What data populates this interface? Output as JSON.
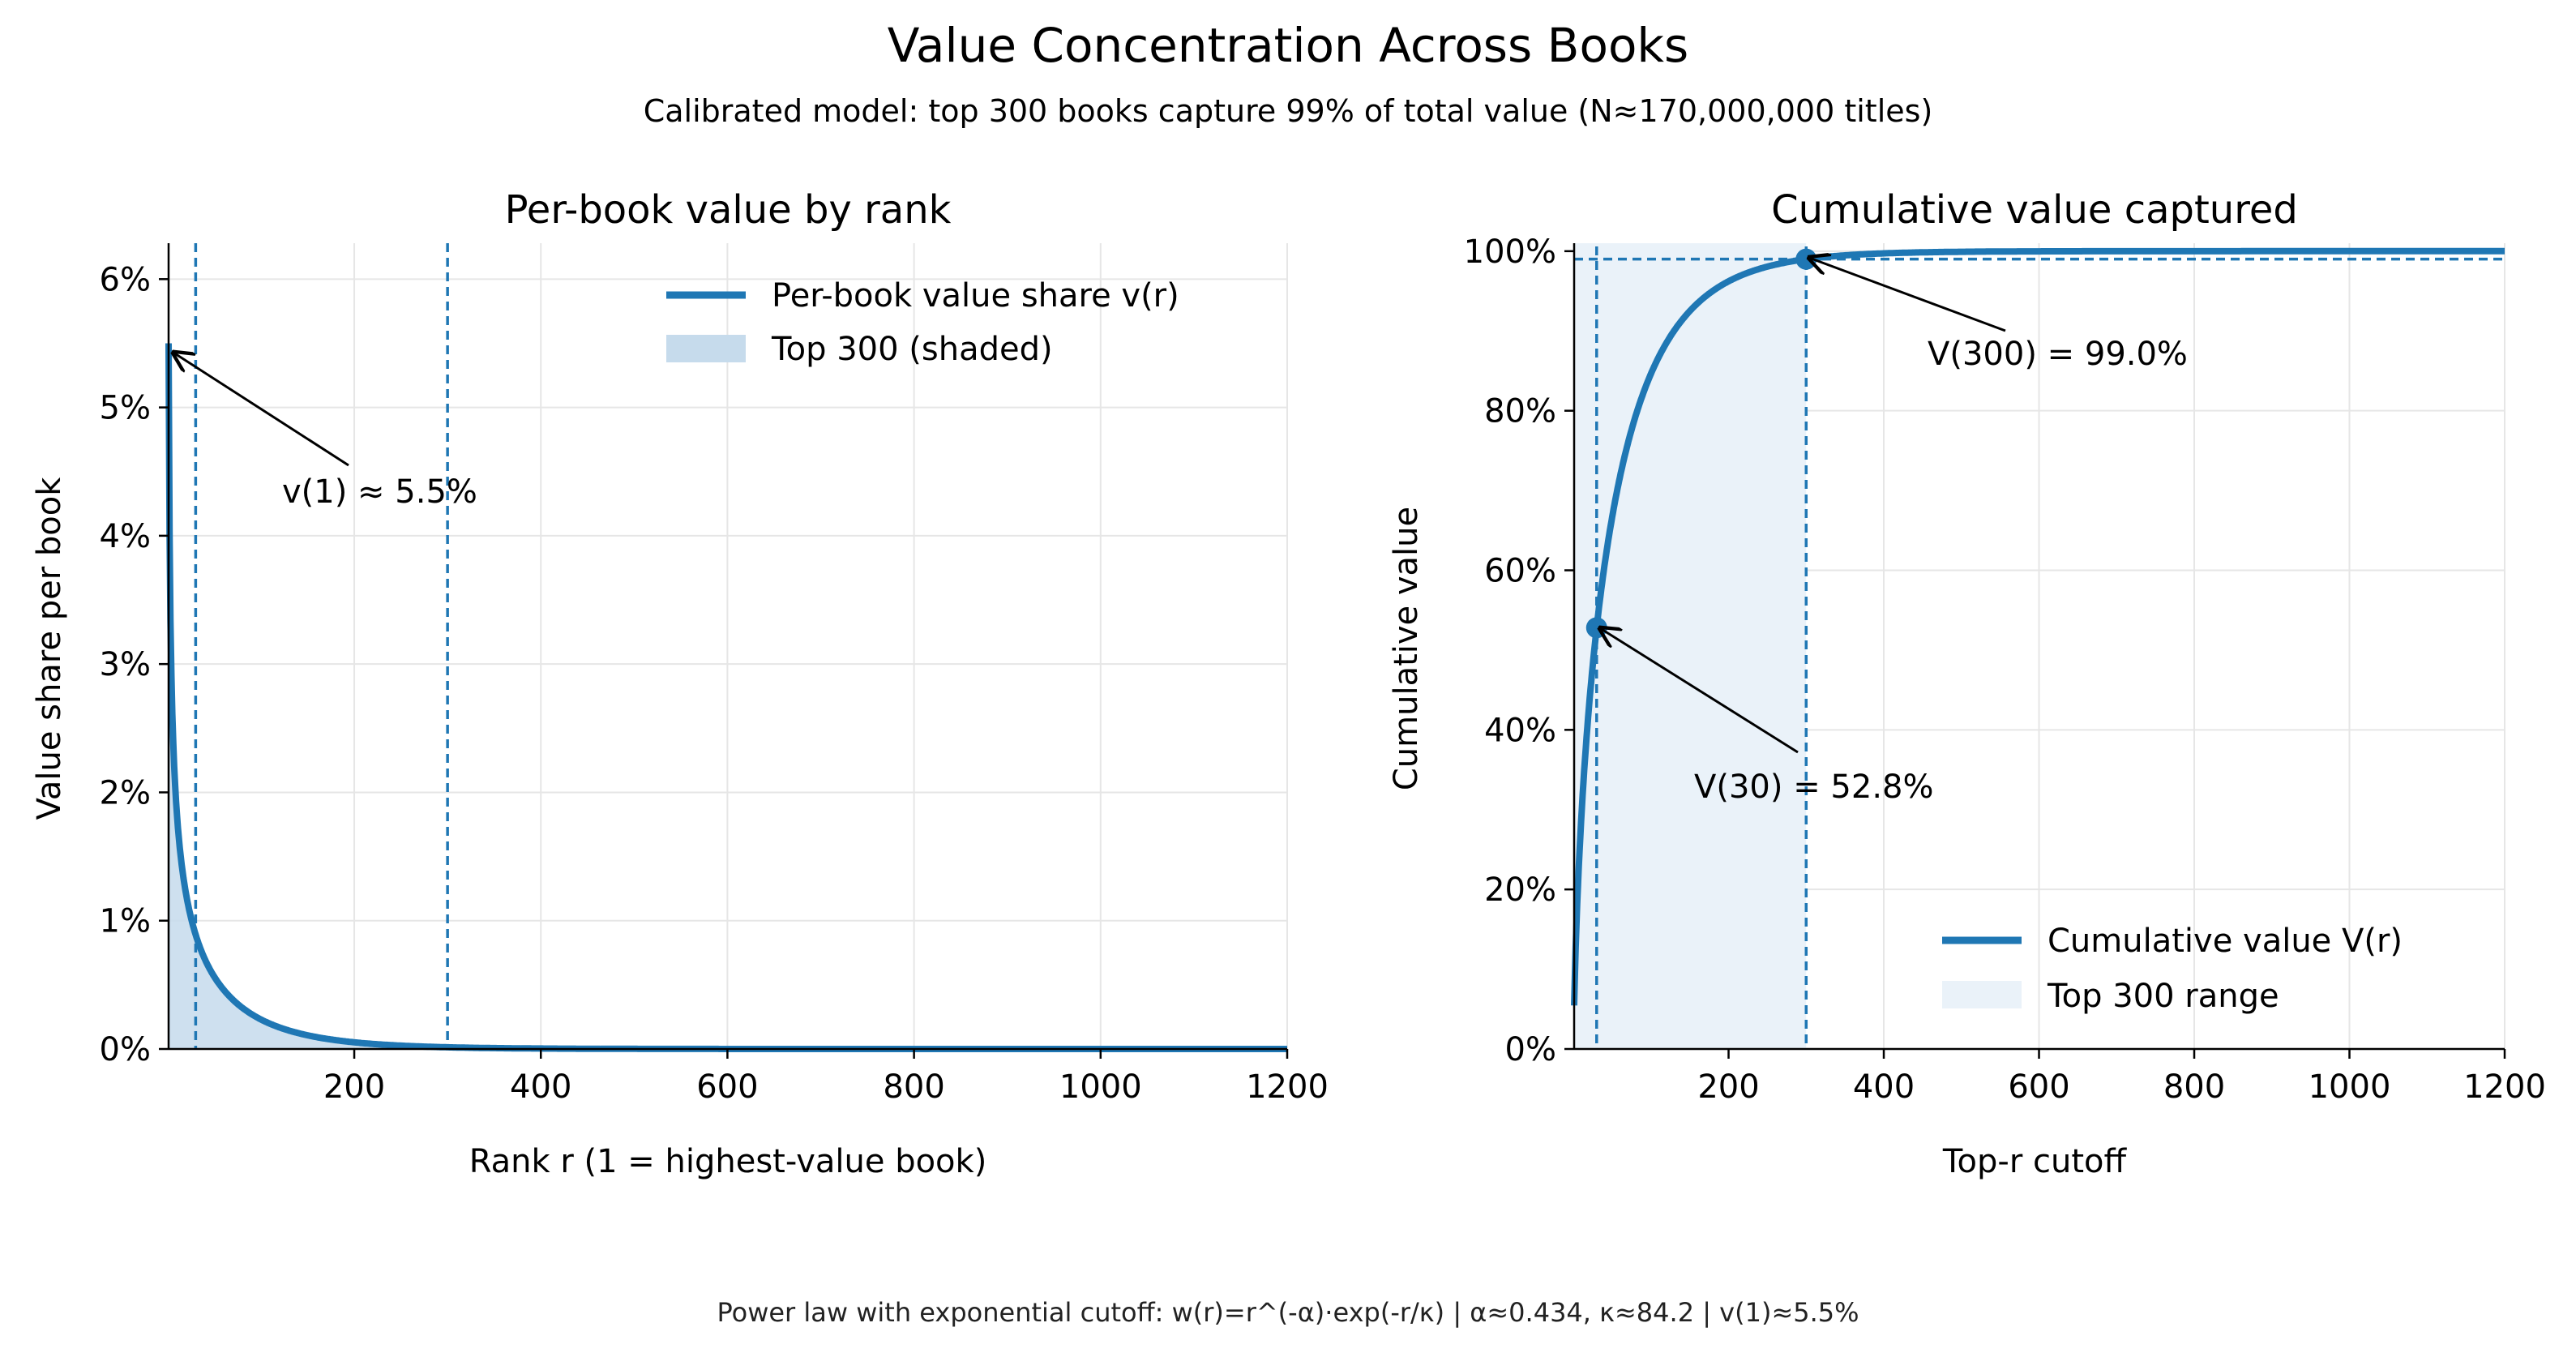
{
  "figure": {
    "title": "Value Concentration Across Books",
    "subtitle": "Calibrated model: top 300 books capture 99% of total value (N≈170,000,000 titles)",
    "footnote": "Power law with exponential cutoff:  w(r)=r^(-α)·exp(-r/κ)  |  α≈0.434, κ≈84.2  |  v(1)≈5.5%"
  },
  "colors": {
    "line": "#1f77b4",
    "shade_left": "#c6dbec",
    "shade_right": "#eaf2f9",
    "grid": "#e6e6e6",
    "annotation": "#000000"
  },
  "chart_data": [
    {
      "type": "line",
      "title": "Per-book value by rank",
      "xlabel": "Rank r (1 = highest-value book)",
      "ylabel": "Value share per book",
      "xlim": [
        1,
        1200
      ],
      "ylim": [
        0,
        0.0628
      ],
      "xticks": [
        200,
        400,
        600,
        800,
        1000,
        1200
      ],
      "xtick_labels": [
        "200",
        "400",
        "600",
        "800",
        "1000",
        "1200"
      ],
      "yticks": [
        0,
        0.01,
        0.02,
        0.03,
        0.04,
        0.05,
        0.06
      ],
      "ytick_labels": [
        "0%",
        "1%",
        "2%",
        "3%",
        "4%",
        "5%",
        "6%"
      ],
      "grid": true,
      "model": {
        "alpha": 0.434,
        "kappa": 84.2,
        "v1": 0.055,
        "N": 170000000
      },
      "series": [
        {
          "name": "Per-book value share  v(r)",
          "x": [
            1,
            2,
            5,
            10,
            20,
            30,
            50,
            75,
            100,
            150,
            200,
            300,
            400,
            600,
            800,
            1000,
            1200
          ],
          "values": [
            0.055,
            0.0404,
            0.0254,
            0.0179,
            0.0119,
            0.0091,
            0.006,
            0.0037,
            0.0023,
            0.0009,
            0.0004,
            0.0001,
            2e-05,
            0.0,
            0.0,
            0.0,
            0.0
          ]
        }
      ],
      "shaded_range": {
        "label": "Top 300 (shaded)",
        "from": 1,
        "to": 300
      },
      "vlines": [
        30,
        300
      ],
      "annotations": [
        {
          "text": "v(1) ≈ 5.5%",
          "x": 1,
          "y": 0.055
        }
      ],
      "legend": "upper right"
    },
    {
      "type": "line",
      "title": "Cumulative value captured",
      "xlabel": "Top-r cutoff",
      "ylabel": "Cumulative value",
      "xlim": [
        1,
        1200
      ],
      "ylim": [
        0,
        1.01
      ],
      "xticks": [
        200,
        400,
        600,
        800,
        1000,
        1200
      ],
      "xtick_labels": [
        "200",
        "400",
        "600",
        "800",
        "1000",
        "1200"
      ],
      "yticks": [
        0,
        0.2,
        0.4,
        0.6,
        0.8,
        1.0
      ],
      "ytick_labels": [
        "0%",
        "20%",
        "40%",
        "60%",
        "80%",
        "100%"
      ],
      "grid": true,
      "series": [
        {
          "name": "Cumulative value  V(r)",
          "x": [
            1,
            5,
            10,
            20,
            30,
            50,
            75,
            100,
            150,
            200,
            250,
            300,
            400,
            600,
            800,
            1000,
            1200
          ],
          "values": [
            0.055,
            0.195,
            0.305,
            0.44,
            0.528,
            0.665,
            0.78,
            0.855,
            0.935,
            0.968,
            0.983,
            0.99,
            0.997,
            1.0,
            1.0,
            1.0,
            1.0
          ]
        }
      ],
      "shaded_range": {
        "label": "Top 300 range",
        "from": 1,
        "to": 300
      },
      "vlines": [
        30,
        300
      ],
      "hlines": [
        0.99
      ],
      "markers": [
        {
          "x": 30,
          "y": 0.528
        },
        {
          "x": 300,
          "y": 0.99
        }
      ],
      "annotations": [
        {
          "text": "V(300) = 99.0%",
          "x": 300,
          "y": 0.99
        },
        {
          "text": "V(30) = 52.8%",
          "x": 30,
          "y": 0.528
        }
      ],
      "legend": "lower right"
    }
  ]
}
